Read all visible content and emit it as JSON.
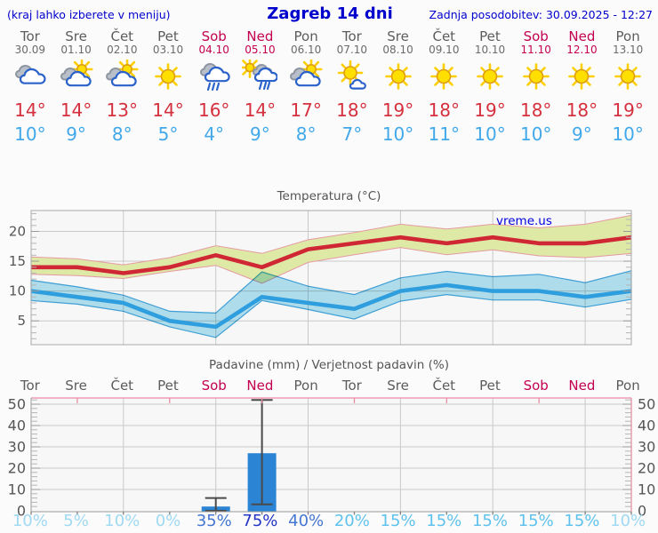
{
  "header": {
    "hint": "(kraj lahko izberete v meniju)",
    "title": "Zagreb 14 dni",
    "updated": "Zadnja posodobitev: 30.09.2025 - 12:27"
  },
  "colors": {
    "link_blue": "#0000cc",
    "weekday_text": "#5c5c5c",
    "weekend_text": "#c30050",
    "tmax_text": "#d5303e",
    "tmin_text": "#41a8ea",
    "prob_low": "#9fd9f2",
    "prob_mid": "#5ec2ec",
    "prob_high": "#4577d2",
    "prob_vhigh": "#2434c5"
  },
  "days": [
    {
      "name": "Tor",
      "date": "30.09",
      "weekend": false,
      "icon": "cloudy",
      "tmax": "14°",
      "tmin": "10°",
      "prob": "10%",
      "prob_level": "low"
    },
    {
      "name": "Sre",
      "date": "01.10",
      "weekend": false,
      "icon": "partly",
      "tmax": "14°",
      "tmin": "9°",
      "prob": "5%",
      "prob_level": "low"
    },
    {
      "name": "Čet",
      "date": "02.10",
      "weekend": false,
      "icon": "partly",
      "tmax": "13°",
      "tmin": "8°",
      "prob": "10%",
      "prob_level": "low"
    },
    {
      "name": "Pet",
      "date": "03.10",
      "weekend": false,
      "icon": "sunny",
      "tmax": "14°",
      "tmin": "5°",
      "prob": "0%",
      "prob_level": "low"
    },
    {
      "name": "Sob",
      "date": "04.10",
      "weekend": true,
      "icon": "rain",
      "tmax": "16°",
      "tmin": "4°",
      "prob": "35%",
      "prob_level": "high"
    },
    {
      "name": "Ned",
      "date": "05.10",
      "weekend": true,
      "icon": "sunrain",
      "tmax": "14°",
      "tmin": "9°",
      "prob": "75%",
      "prob_level": "vhigh"
    },
    {
      "name": "Pon",
      "date": "06.10",
      "weekend": false,
      "icon": "partly",
      "tmax": "17°",
      "tmin": "8°",
      "prob": "40%",
      "prob_level": "high"
    },
    {
      "name": "Tor",
      "date": "07.10",
      "weekend": false,
      "icon": "mostlysunny",
      "tmax": "18°",
      "tmin": "7°",
      "prob": "20%",
      "prob_level": "mid"
    },
    {
      "name": "Sre",
      "date": "08.10",
      "weekend": false,
      "icon": "sunny",
      "tmax": "19°",
      "tmin": "10°",
      "prob": "15%",
      "prob_level": "mid"
    },
    {
      "name": "Čet",
      "date": "09.10",
      "weekend": false,
      "icon": "sunny",
      "tmax": "18°",
      "tmin": "11°",
      "prob": "15%",
      "prob_level": "mid"
    },
    {
      "name": "Pet",
      "date": "10.10",
      "weekend": false,
      "icon": "sunny",
      "tmax": "19°",
      "tmin": "10°",
      "prob": "15%",
      "prob_level": "mid"
    },
    {
      "name": "Sob",
      "date": "11.10",
      "weekend": true,
      "icon": "sunny",
      "tmax": "18°",
      "tmin": "10°",
      "prob": "15%",
      "prob_level": "mid"
    },
    {
      "name": "Ned",
      "date": "12.10",
      "weekend": true,
      "icon": "sunny",
      "tmax": "18°",
      "tmin": "9°",
      "prob": "15%",
      "prob_level": "mid"
    },
    {
      "name": "Pon",
      "date": "13.10",
      "weekend": false,
      "icon": "sunny",
      "tmax": "19°",
      "tmin": "10°",
      "prob": "10%",
      "prob_level": "low"
    }
  ],
  "chart_data": [
    {
      "type": "line",
      "title": "Temperatura (°C)",
      "watermark": "vreme.us",
      "categories": [
        "Tor",
        "Sre",
        "Čet",
        "Pet",
        "Sob",
        "Ned",
        "Pon",
        "Tor",
        "Sre",
        "Čet",
        "Pet",
        "Sob",
        "Ned",
        "Pon"
      ],
      "ylim": [
        1,
        23.5
      ],
      "yticks": [
        5,
        10,
        15,
        20
      ],
      "grid": true,
      "series": [
        {
          "name": "max_band_upper",
          "values": [
            15.7,
            15.4,
            14.4,
            15.6,
            17.6,
            16.3,
            18.6,
            19.8,
            21.2,
            20.4,
            21.2,
            20.6,
            21.2,
            22.7
          ]
        },
        {
          "name": "max_temp",
          "values": [
            14,
            14,
            13,
            14,
            16,
            14,
            17,
            18,
            19,
            18,
            19,
            18,
            18,
            19
          ]
        },
        {
          "name": "max_band_lower",
          "values": [
            12.8,
            12.6,
            12.1,
            13.3,
            14.3,
            11.3,
            14.8,
            16.1,
            17.3,
            16.1,
            16.9,
            15.9,
            15.6,
            16.3
          ]
        },
        {
          "name": "min_band_upper",
          "values": [
            11.8,
            10.7,
            9.3,
            6.6,
            6.3,
            13.2,
            10.8,
            9.4,
            12.2,
            13.3,
            12.4,
            12.8,
            11.4,
            13.4
          ]
        },
        {
          "name": "min_temp",
          "values": [
            10,
            9,
            8,
            5,
            4,
            9,
            8,
            7,
            10,
            11,
            10,
            10,
            9,
            10
          ]
        },
        {
          "name": "min_band_lower",
          "values": [
            8.4,
            7.8,
            6.6,
            4.0,
            2.2,
            8.4,
            6.9,
            5.3,
            8.3,
            9.4,
            8.5,
            8.5,
            7.3,
            8.6
          ]
        }
      ],
      "colors": {
        "max_line": "#cf2734",
        "max_band": "#dfe9a6",
        "max_band_edge": "#e59aa2",
        "min_line": "#2f9ede",
        "min_band": "#b5e3f2",
        "min_band_edge": "#41a4dc"
      }
    },
    {
      "type": "bar",
      "title": "Padavine (mm) / Verjetnost padavin (%)",
      "categories": [
        "Tor",
        "Sre",
        "Čet",
        "Pet",
        "Sob",
        "Ned",
        "Pon",
        "Tor",
        "Sre",
        "Čet",
        "Pet",
        "Sob",
        "Ned",
        "Pon"
      ],
      "ylim": [
        0,
        53
      ],
      "yticks": [
        0,
        10,
        20,
        30,
        40,
        50
      ],
      "grid": true,
      "bars": [
        {
          "day": "Sob 04.10",
          "index": 4,
          "value_mm": 2,
          "range_mm": [
            0,
            6
          ]
        },
        {
          "day": "Ned 05.10",
          "index": 5,
          "value_mm": 27,
          "range_mm": [
            3,
            52
          ]
        }
      ],
      "probabilities_pct": [
        10,
        5,
        10,
        0,
        35,
        75,
        40,
        20,
        15,
        15,
        15,
        15,
        15,
        10
      ],
      "colors": {
        "bar": "#2b84d4",
        "whisker": "#4a4a4a"
      }
    }
  ]
}
